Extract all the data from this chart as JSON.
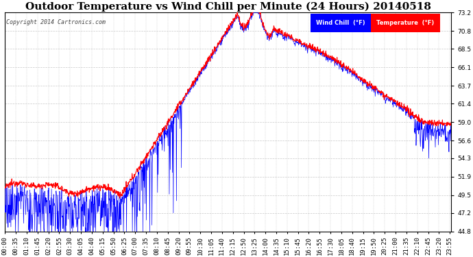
{
  "title": "Outdoor Temperature vs Wind Chill per Minute (24 Hours) 20140518",
  "copyright_text": "Copyright 2014 Cartronics.com",
  "ylim": [
    44.8,
    73.2
  ],
  "yticks": [
    44.8,
    47.2,
    49.5,
    51.9,
    54.3,
    56.6,
    59.0,
    61.4,
    63.7,
    66.1,
    68.5,
    70.8,
    73.2
  ],
  "temp_color": "#ff0000",
  "wind_color": "#0000ff",
  "bg_color": "#ffffff",
  "grid_color": "#c8c8c8",
  "legend_wind_bg": "#0000ff",
  "legend_temp_bg": "#ff0000",
  "title_fontsize": 11,
  "tick_fontsize": 6.5,
  "num_minutes": 1440,
  "tick_every": 35
}
